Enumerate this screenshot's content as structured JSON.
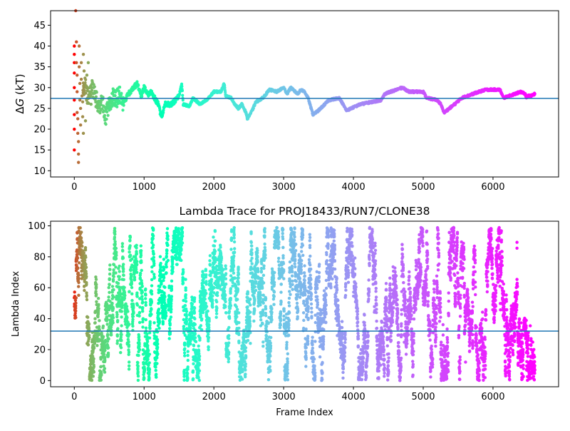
{
  "chart_data": [
    {
      "type": "scatter",
      "title": "",
      "xlabel": "",
      "ylabel": "ΔG (kT)",
      "ylabel_symbol": "Δ",
      "ylabel_var": "G",
      "ylabel_unit": " (kT)",
      "xlim": [
        -340,
        6940
      ],
      "ylim": [
        8.5,
        48.5
      ],
      "xticks": [
        0,
        1000,
        2000,
        3000,
        4000,
        5000,
        6000
      ],
      "yticks": [
        10,
        15,
        20,
        25,
        30,
        35,
        40,
        45
      ],
      "hline": {
        "y": 27.4,
        "color": "#1f77b4"
      },
      "colormap": "rainbow (reversed: red at frame 0, violet at end)",
      "n_frames": 6600,
      "trace_anchors": [
        [
          120,
          28.5
        ],
        [
          150,
          31
        ],
        [
          200,
          27
        ],
        [
          250,
          30
        ],
        [
          300,
          28
        ],
        [
          350,
          25
        ],
        [
          400,
          27
        ],
        [
          450,
          23
        ],
        [
          500,
          26
        ],
        [
          560,
          28
        ],
        [
          600,
          27
        ],
        [
          650,
          29
        ],
        [
          700,
          26
        ],
        [
          760,
          28
        ],
        [
          800,
          29
        ],
        [
          900,
          31
        ],
        [
          960,
          28
        ],
        [
          1000,
          30
        ],
        [
          1060,
          28.5
        ],
        [
          1100,
          29
        ],
        [
          1200,
          26
        ],
        [
          1250,
          23
        ],
        [
          1300,
          26
        ],
        [
          1400,
          26
        ],
        [
          1500,
          28
        ],
        [
          1540,
          31
        ],
        [
          1560,
          26
        ],
        [
          1650,
          25.5
        ],
        [
          1700,
          27.5
        ],
        [
          1800,
          26
        ],
        [
          1900,
          27
        ],
        [
          2000,
          29
        ],
        [
          2100,
          29
        ],
        [
          2150,
          31
        ],
        [
          2170,
          28
        ],
        [
          2250,
          27.5
        ],
        [
          2300,
          26
        ],
        [
          2350,
          25
        ],
        [
          2400,
          26
        ],
        [
          2460,
          24
        ],
        [
          2480,
          22.5
        ],
        [
          2550,
          24.5
        ],
        [
          2600,
          26.5
        ],
        [
          2700,
          27.5
        ],
        [
          2800,
          29.5
        ],
        [
          2900,
          29
        ],
        [
          3000,
          30
        ],
        [
          3050,
          28.5
        ],
        [
          3100,
          30
        ],
        [
          3200,
          28.5
        ],
        [
          3250,
          29.5
        ],
        [
          3300,
          29
        ],
        [
          3350,
          27.5
        ],
        [
          3420,
          23.5
        ],
        [
          3500,
          24.5
        ],
        [
          3650,
          27
        ],
        [
          3800,
          27.5
        ],
        [
          3900,
          24.5
        ],
        [
          4100,
          26
        ],
        [
          4400,
          27
        ],
        [
          4450,
          28.5
        ],
        [
          4700,
          30
        ],
        [
          4800,
          29
        ],
        [
          5000,
          29
        ],
        [
          5050,
          27.5
        ],
        [
          5200,
          27
        ],
        [
          5250,
          26
        ],
        [
          5300,
          24
        ],
        [
          5450,
          26
        ],
        [
          5550,
          27.5
        ],
        [
          5800,
          29
        ],
        [
          5900,
          29.5
        ],
        [
          6100,
          29.5
        ],
        [
          6150,
          27.5
        ],
        [
          6400,
          29
        ],
        [
          6460,
          28.5
        ],
        [
          6480,
          27.5
        ],
        [
          6500,
          28
        ],
        [
          6550,
          28
        ],
        [
          6600,
          28.5
        ]
      ],
      "early_points": [
        [
          0,
          40
        ],
        [
          0,
          36
        ],
        [
          0,
          30
        ],
        [
          0,
          27
        ],
        [
          0,
          23.5
        ],
        [
          0,
          20
        ],
        [
          0,
          15
        ],
        [
          0,
          33.5
        ],
        [
          0,
          38
        ],
        [
          20,
          48.5
        ],
        [
          30,
          41
        ],
        [
          30,
          36
        ],
        [
          40,
          33
        ],
        [
          40,
          29
        ],
        [
          40,
          24
        ],
        [
          50,
          22.5
        ],
        [
          50,
          19
        ],
        [
          60,
          12
        ],
        [
          60,
          14
        ],
        [
          60,
          17
        ],
        [
          70,
          40
        ],
        [
          70,
          35
        ],
        [
          80,
          31
        ],
        [
          80,
          27
        ],
        [
          90,
          25
        ],
        [
          90,
          21
        ],
        [
          100,
          32
        ],
        [
          100,
          36
        ],
        [
          110,
          28
        ],
        [
          120,
          23
        ],
        [
          130,
          38
        ],
        [
          130,
          19
        ],
        [
          140,
          34
        ],
        [
          160,
          22
        ],
        [
          170,
          30
        ],
        [
          180,
          33
        ],
        [
          200,
          36
        ],
        [
          220,
          30
        ],
        [
          240,
          26
        ]
      ]
    },
    {
      "type": "scatter",
      "title": "Lambda Trace for PROJ18433/RUN7/CLONE38",
      "xlabel": "Frame Index",
      "ylabel": "Lambda Index",
      "xlim": [
        -340,
        6940
      ],
      "ylim": [
        -4,
        103
      ],
      "xticks": [
        0,
        1000,
        2000,
        3000,
        4000,
        5000,
        6000
      ],
      "yticks": [
        0,
        20,
        40,
        60,
        80,
        100
      ],
      "hline": {
        "y": 32,
        "color": "#1f77b4"
      },
      "colormap": "rainbow (reversed: red at frame 0, violet at end)",
      "n_frames": 6600,
      "lambda_range": [
        0,
        99
      ],
      "point_count": 6600
    }
  ],
  "colors": {
    "hline": "#1f77b4",
    "axes": "#000000",
    "background": "#ffffff"
  }
}
